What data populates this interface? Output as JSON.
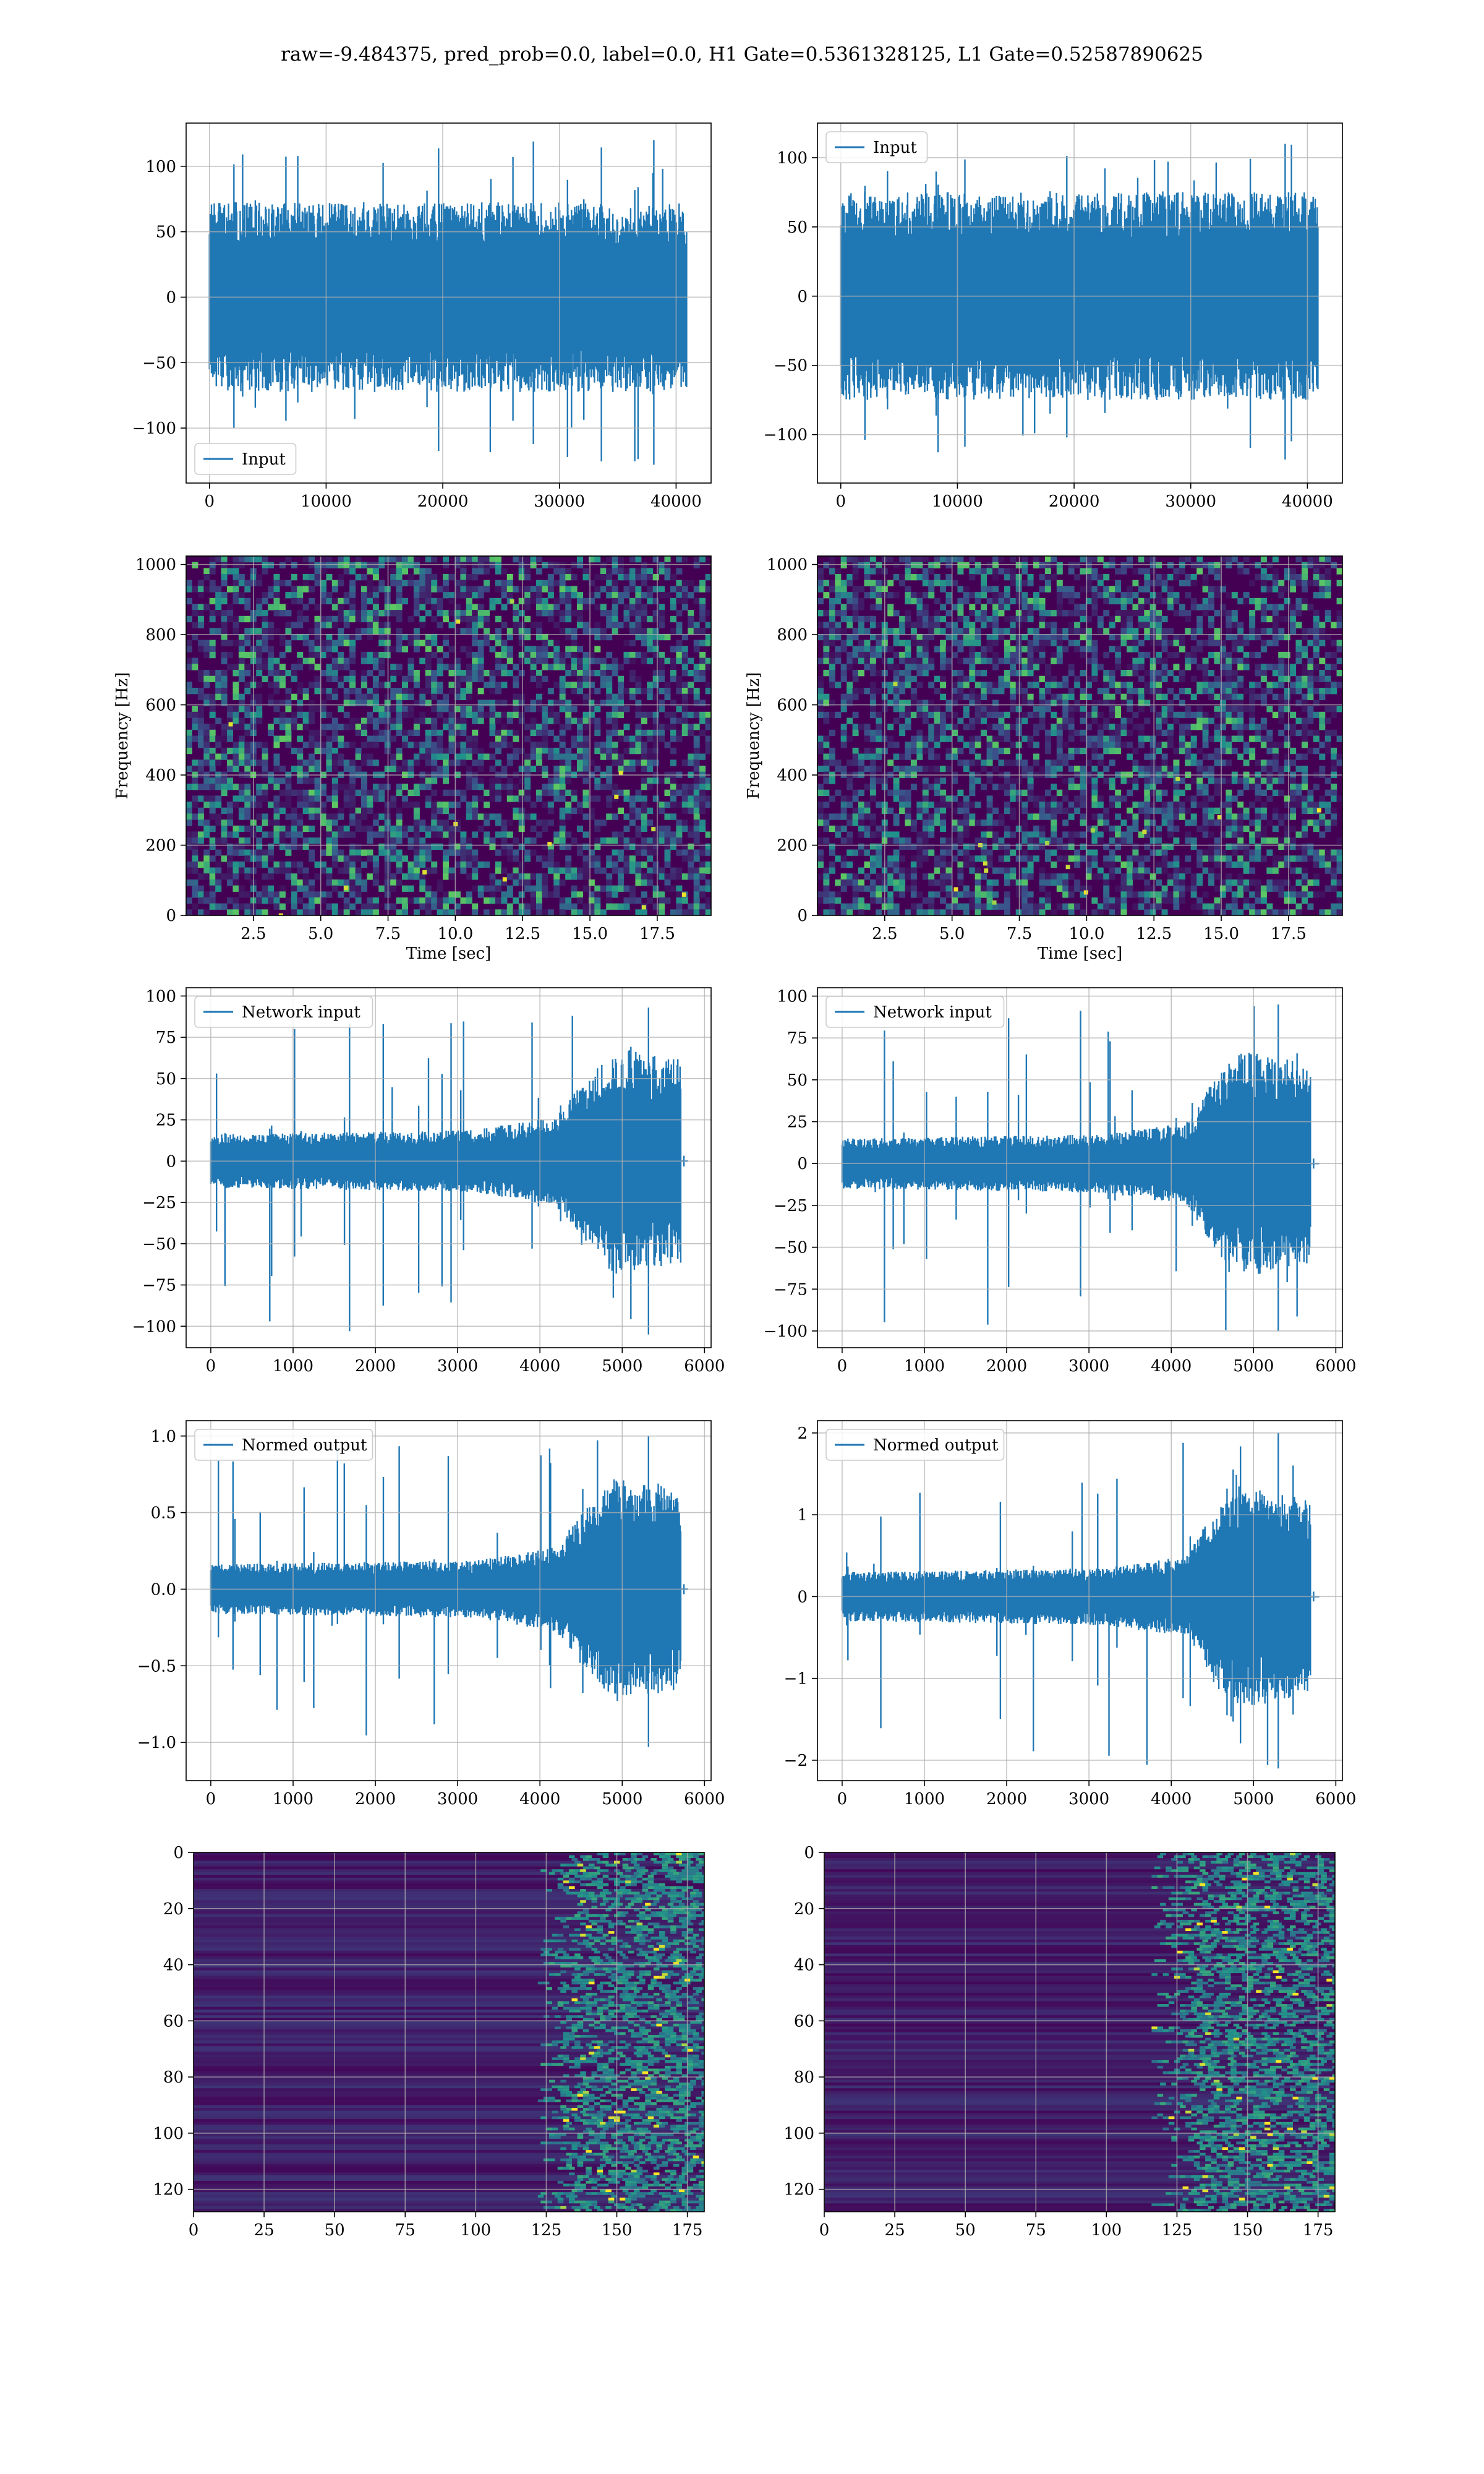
{
  "figure_title": "raw=-9.484375, pred_prob=0.0, label=0.0, H1 Gate=0.5361328125, L1 Gate=0.52587890625",
  "colors": {
    "series": "#1f77b4",
    "grid": "#b0b0b0",
    "viridis_dark": "#440154",
    "viridis_mid": "#31688e",
    "viridis_teal": "#21918c",
    "viridis_green": "#5ec962",
    "viridis_yellow": "#fde725"
  },
  "chart_data": [
    {
      "id": "h1_input",
      "type": "line",
      "title": "",
      "legend": [
        "Input"
      ],
      "legend_loc": "lower-left",
      "xlabel": "",
      "ylabel": "",
      "xlim": [
        -2000,
        43000
      ],
      "ylim": [
        -142,
        133
      ],
      "xticks": [
        0,
        10000,
        20000,
        30000,
        40000
      ],
      "xtick_labels": [
        "0",
        "10000",
        "20000",
        "30000",
        "40000"
      ],
      "yticks": [
        -100,
        -50,
        0,
        50,
        100
      ],
      "ytick_labels": [
        "−100",
        "−50",
        "0",
        "50",
        "100"
      ],
      "signal": {
        "x_start": 0,
        "x_end": 40960,
        "n": 700,
        "amp_segments": [
          [
            0,
            58
          ],
          [
            40960,
            58
          ]
        ],
        "peak": 120,
        "trough": -128,
        "tail_end": 40960
      },
      "grid": true
    },
    {
      "id": "l1_input",
      "type": "line",
      "title": "",
      "legend": [
        "Input"
      ],
      "legend_loc": "upper-left",
      "xlabel": "",
      "ylabel": "",
      "xlim": [
        -2000,
        43000
      ],
      "ylim": [
        -135,
        125
      ],
      "xticks": [
        0,
        10000,
        20000,
        30000,
        40000
      ],
      "xtick_labels": [
        "0",
        "10000",
        "20000",
        "30000",
        "40000"
      ],
      "yticks": [
        -100,
        -50,
        0,
        50,
        100
      ],
      "ytick_labels": [
        "−100",
        "−50",
        "0",
        "50",
        "100"
      ],
      "signal": {
        "x_start": 0,
        "x_end": 40960,
        "n": 700,
        "amp_segments": [
          [
            0,
            60
          ],
          [
            40960,
            60
          ]
        ],
        "peak": 110,
        "trough": -118,
        "tail_end": 40960
      },
      "grid": true
    },
    {
      "id": "h1_spectrogram",
      "type": "heatmap",
      "title": "",
      "xlabel": "Time [sec]",
      "ylabel": "Frequency [Hz]",
      "xlim": [
        0,
        19.5
      ],
      "ylim": [
        0,
        1024
      ],
      "xticks": [
        2.5,
        5.0,
        7.5,
        10.0,
        12.5,
        15.0,
        17.5
      ],
      "xtick_labels": [
        "2.5",
        "5.0",
        "7.5",
        "10.0",
        "12.5",
        "15.0",
        "17.5"
      ],
      "yticks": [
        0,
        200,
        400,
        600,
        800,
        1000
      ],
      "ytick_labels": [
        "0",
        "200",
        "400",
        "600",
        "800",
        "1000"
      ],
      "grid": true,
      "colormap": "viridis",
      "seed": 11,
      "style": "noise"
    },
    {
      "id": "l1_spectrogram",
      "type": "heatmap",
      "title": "",
      "xlabel": "Time [sec]",
      "ylabel": "Frequency [Hz]",
      "xlim": [
        0,
        19.5
      ],
      "ylim": [
        0,
        1024
      ],
      "xticks": [
        2.5,
        5.0,
        7.5,
        10.0,
        12.5,
        15.0,
        17.5
      ],
      "xtick_labels": [
        "2.5",
        "5.0",
        "7.5",
        "10.0",
        "12.5",
        "15.0",
        "17.5"
      ],
      "yticks": [
        0,
        200,
        400,
        600,
        800,
        1000
      ],
      "ytick_labels": [
        "0",
        "200",
        "400",
        "600",
        "800",
        "1000"
      ],
      "grid": true,
      "colormap": "viridis",
      "seed": 23,
      "style": "noise"
    },
    {
      "id": "h1_network_input",
      "type": "line",
      "title": "",
      "legend": [
        "Network input"
      ],
      "legend_loc": "upper-left",
      "xlabel": "",
      "ylabel": "",
      "xlim": [
        -300,
        6080
      ],
      "ylim": [
        -113,
        105
      ],
      "xticks": [
        0,
        1000,
        2000,
        3000,
        4000,
        5000,
        6000
      ],
      "xtick_labels": [
        "0",
        "1000",
        "2000",
        "3000",
        "4000",
        "5000",
        "6000"
      ],
      "yticks": [
        -100,
        -75,
        -50,
        -25,
        0,
        25,
        50,
        75,
        100
      ],
      "ytick_labels": [
        "−100",
        "−75",
        "−50",
        "−25",
        "0",
        "25",
        "50",
        "75",
        "100"
      ],
      "signal": {
        "x_start": 0,
        "x_end": 5720,
        "n": 650,
        "amp_segments": [
          [
            0,
            13
          ],
          [
            3200,
            15
          ],
          [
            4200,
            22
          ],
          [
            4650,
            45
          ],
          [
            4900,
            55
          ],
          [
            5720,
            50
          ]
        ],
        "peak": 93,
        "trough": -105,
        "tail_end": 5800
      },
      "grid": true
    },
    {
      "id": "l1_network_input",
      "type": "line",
      "title": "",
      "legend": [
        "Network input"
      ],
      "legend_loc": "upper-left",
      "xlabel": "",
      "ylabel": "",
      "xlim": [
        -300,
        6080
      ],
      "ylim": [
        -110,
        105
      ],
      "xticks": [
        0,
        1000,
        2000,
        3000,
        4000,
        5000,
        6000
      ],
      "xtick_labels": [
        "0",
        "1000",
        "2000",
        "3000",
        "4000",
        "5000",
        "6000"
      ],
      "yticks": [
        -100,
        -75,
        -50,
        -25,
        0,
        25,
        50,
        75,
        100
      ],
      "ytick_labels": [
        "−100",
        "−75",
        "−50",
        "−25",
        "0",
        "25",
        "50",
        "75",
        "100"
      ],
      "signal": {
        "x_start": 0,
        "x_end": 5700,
        "n": 650,
        "amp_segments": [
          [
            0,
            12
          ],
          [
            3200,
            14
          ],
          [
            4200,
            20
          ],
          [
            4550,
            42
          ],
          [
            4850,
            55
          ],
          [
            5700,
            48
          ]
        ],
        "peak": 95,
        "trough": -100,
        "tail_end": 5800
      },
      "grid": true
    },
    {
      "id": "h1_normed_output",
      "type": "line",
      "title": "",
      "legend": [
        "Normed output"
      ],
      "legend_loc": "upper-left",
      "xlabel": "",
      "ylabel": "",
      "xlim": [
        -300,
        6080
      ],
      "ylim": [
        -1.25,
        1.1
      ],
      "xticks": [
        0,
        1000,
        2000,
        3000,
        4000,
        5000,
        6000
      ],
      "xtick_labels": [
        "0",
        "1000",
        "2000",
        "3000",
        "4000",
        "5000",
        "6000"
      ],
      "yticks": [
        -1.0,
        -0.5,
        0.0,
        0.5,
        1.0
      ],
      "ytick_labels": [
        "−1.0",
        "−0.5",
        "0.0",
        "0.5",
        "1.0"
      ],
      "signal": {
        "x_start": 0,
        "x_end": 5720,
        "n": 650,
        "amp_segments": [
          [
            0,
            0.13
          ],
          [
            3200,
            0.15
          ],
          [
            4200,
            0.22
          ],
          [
            4650,
            0.48
          ],
          [
            4900,
            0.58
          ],
          [
            5720,
            0.52
          ]
        ],
        "peak": 1.0,
        "trough": -1.03,
        "tail_end": 5800
      },
      "grid": true
    },
    {
      "id": "l1_normed_output",
      "type": "line",
      "title": "",
      "legend": [
        "Normed output"
      ],
      "legend_loc": "upper-left",
      "xlabel": "",
      "ylabel": "",
      "xlim": [
        -300,
        6080
      ],
      "ylim": [
        -2.25,
        2.15
      ],
      "xticks": [
        0,
        1000,
        2000,
        3000,
        4000,
        5000,
        6000
      ],
      "xtick_labels": [
        "0",
        "1000",
        "2000",
        "3000",
        "4000",
        "5000",
        "6000"
      ],
      "yticks": [
        -2,
        -1,
        0,
        1,
        2
      ],
      "ytick_labels": [
        "−2",
        "−1",
        "0",
        "1",
        "2"
      ],
      "signal": {
        "x_start": 0,
        "x_end": 5700,
        "n": 650,
        "amp_segments": [
          [
            0,
            0.24
          ],
          [
            3200,
            0.28
          ],
          [
            4200,
            0.4
          ],
          [
            4550,
            0.9
          ],
          [
            4850,
            1.1
          ],
          [
            5700,
            0.95
          ]
        ],
        "peak": 2.0,
        "trough": -2.1,
        "tail_end": 5800
      },
      "grid": true
    },
    {
      "id": "h1_feature_map",
      "type": "heatmap",
      "title": "",
      "xlabel": "",
      "ylabel": "",
      "xlim": [
        0,
        181
      ],
      "ylim": [
        128,
        0
      ],
      "xticks": [
        0,
        25,
        50,
        75,
        100,
        125,
        150,
        175
      ],
      "xtick_labels": [
        "0",
        "25",
        "50",
        "75",
        "100",
        "125",
        "150",
        "175"
      ],
      "yticks": [
        0,
        20,
        40,
        60,
        80,
        100,
        120
      ],
      "ytick_labels": [
        "0",
        "20",
        "40",
        "60",
        "80",
        "100",
        "120"
      ],
      "grid": true,
      "colormap": "viridis",
      "seed": 37,
      "style": "bands",
      "active_from": 128
    },
    {
      "id": "l1_feature_map",
      "type": "heatmap",
      "title": "",
      "xlabel": "",
      "ylabel": "",
      "xlim": [
        0,
        181
      ],
      "ylim": [
        128,
        0
      ],
      "xticks": [
        0,
        25,
        50,
        75,
        100,
        125,
        150,
        175
      ],
      "xtick_labels": [
        "0",
        "25",
        "50",
        "75",
        "100",
        "125",
        "150",
        "175"
      ],
      "yticks": [
        0,
        20,
        40,
        60,
        80,
        100,
        120
      ],
      "ytick_labels": [
        "0",
        "20",
        "40",
        "60",
        "80",
        "100",
        "120"
      ],
      "grid": true,
      "colormap": "viridis",
      "seed": 53,
      "style": "bands",
      "active_from": 122
    }
  ]
}
